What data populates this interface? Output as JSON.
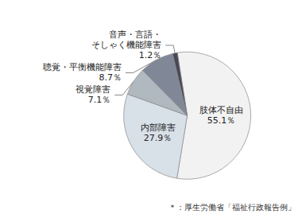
{
  "chart_data": {
    "type": "pie",
    "categories": [
      "肢体不自由",
      "内部障害",
      "視覚障害",
      "聴覚・平衡機能障害",
      "音声・言語・\nそしゃく機能障害"
    ],
    "values": [
      55.1,
      27.9,
      7.1,
      8.7,
      1.2
    ],
    "value_labels": [
      "55.1％",
      "27.9％",
      "7.1％",
      "8.7％",
      "1.2％"
    ],
    "colors": [
      "#f2f2f2",
      "#d8e0e8",
      "#b0b8c0",
      "#808898",
      "#484858"
    ],
    "data_labels": true,
    "annotations": [
      "＊：厚生労働省「福祉行政報告例」"
    ]
  }
}
